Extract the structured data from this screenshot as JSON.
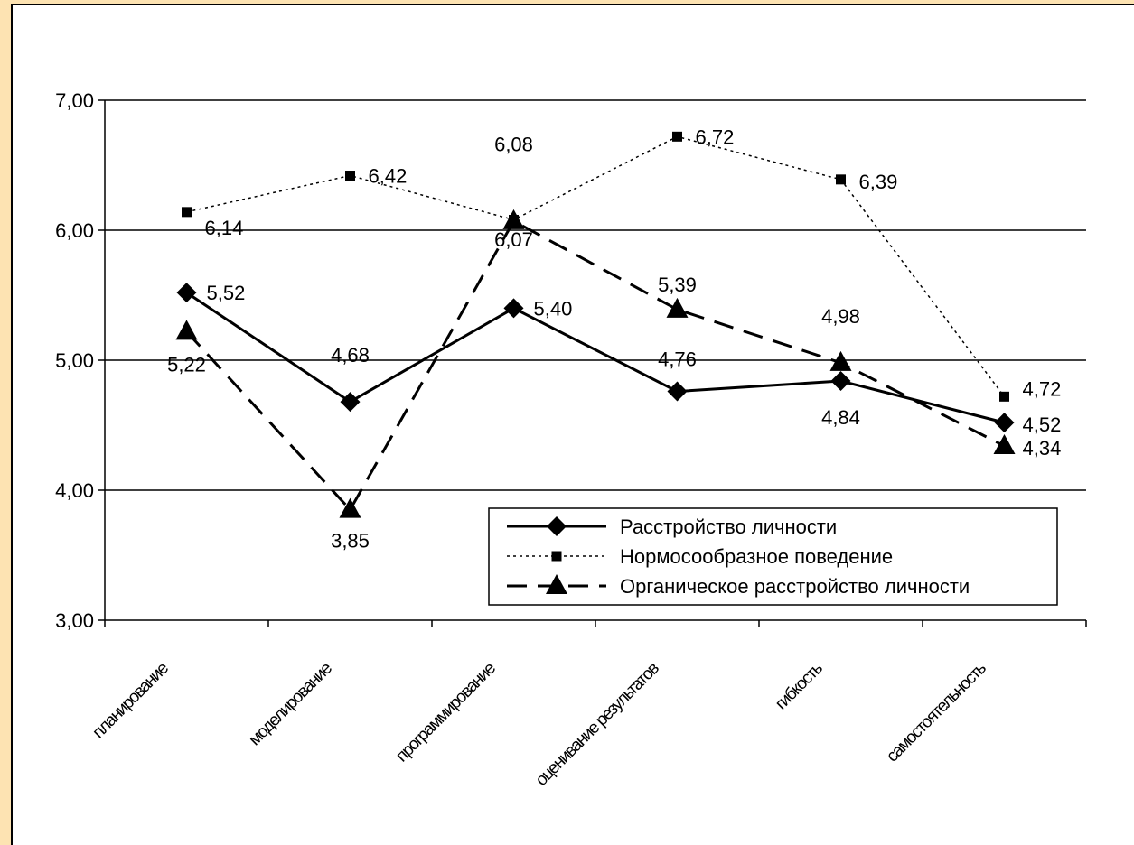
{
  "chart_data": {
    "type": "line",
    "categories": [
      "планирование",
      "моделирование",
      "программирование",
      "оценивание результатов",
      "гибкость",
      "самостоятельность"
    ],
    "ylim": [
      3,
      7
    ],
    "yticks": [
      "3,00",
      "4,00",
      "5,00",
      "6,00",
      "7,00"
    ],
    "grid": true,
    "legend_position": "bottom-right",
    "series": [
      {
        "name": "Расстройство личности",
        "marker": "diamond",
        "line": "solid",
        "values": [
          5.52,
          4.68,
          5.4,
          4.76,
          4.84,
          4.52
        ],
        "labels": [
          "5,52",
          "4,68",
          "5,40",
          "4,76",
          "4,84",
          "4,52"
        ]
      },
      {
        "name": "Нормосообразное поведение",
        "marker": "square",
        "line": "dotted",
        "values": [
          6.14,
          6.42,
          6.08,
          6.72,
          6.39,
          4.72
        ],
        "labels": [
          "6,14",
          "6,42",
          "6,08",
          "6,72",
          "6,39",
          "4,72"
        ]
      },
      {
        "name": "Органическое расстройство личности",
        "marker": "triangle",
        "line": "dashed",
        "values": [
          5.22,
          3.85,
          6.07,
          5.39,
          4.98,
          4.34
        ],
        "labels": [
          "5,22",
          "3,85",
          "6,07",
          "5,39",
          "4,98",
          "4,34"
        ]
      }
    ]
  }
}
